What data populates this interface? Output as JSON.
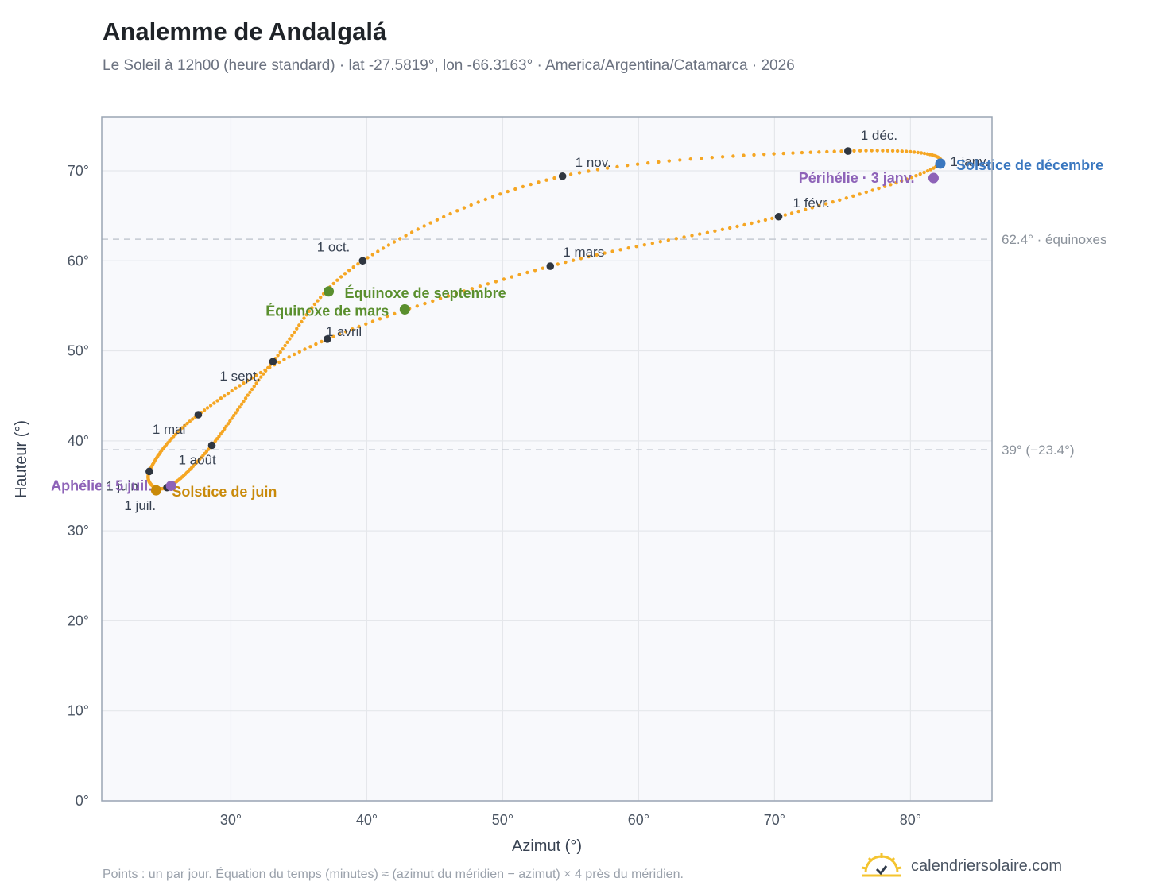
{
  "title": "Analemme de Andalgalá",
  "subtitle": "Le Soleil à 12h00 (heure standard) · lat -27.5819°, lon -66.3163° · America/Argentina/Catamarca · 2026",
  "footnote": "Points : un par jour. Équation du temps (minutes) ≈ (azimut du méridien − azimut) × 4 près du méridien.",
  "brand": {
    "name": "calendriersolaire.com",
    "icon": "sun-logo-icon"
  },
  "colors": {
    "curve": "#f5a623",
    "month_dot": "#2f3640",
    "equinox": "#5a8f2e",
    "june_solstice": "#c98a0a",
    "december_solstice": "#3b78c0",
    "apsis": "#8e63b8",
    "grid": "#e5e7eb",
    "plot_bg": "#f8f9fc",
    "frame": "#9aa5b4"
  },
  "chart_data": {
    "type": "scatter",
    "xlabel": "Azimut (°)",
    "ylabel": "Hauteur (°)",
    "xlim": [
      20.5,
      86
    ],
    "ylim": [
      0,
      76
    ],
    "xticks": [
      "30°",
      "40°",
      "50°",
      "60°",
      "70°",
      "80°"
    ],
    "yticks": [
      "0°",
      "10°",
      "20°",
      "30°",
      "40°",
      "50°",
      "60°",
      "70°"
    ],
    "grid": true,
    "reference_lines": [
      {
        "y": 62.4,
        "label": "62.4° · équinoxes"
      },
      {
        "y": 39.0,
        "label": "39° (−23.4°)"
      }
    ],
    "months": [
      {
        "label": "1 janv.",
        "az": 82.1,
        "alt": 70.7
      },
      {
        "label": "1 févr.",
        "az": 70.3,
        "alt": 64.9
      },
      {
        "label": "1 mars",
        "az": 53.5,
        "alt": 59.4
      },
      {
        "label": "1 avril",
        "az": 37.1,
        "alt": 51.3
      },
      {
        "label": "1 mai",
        "az": 27.6,
        "alt": 42.9
      },
      {
        "label": "1 juin",
        "az": 24.0,
        "alt": 36.6
      },
      {
        "label": "1 juil.",
        "az": 25.3,
        "alt": 34.8
      },
      {
        "label": "1 août",
        "az": 28.6,
        "alt": 39.5
      },
      {
        "label": "1 sept.",
        "az": 33.1,
        "alt": 48.8
      },
      {
        "label": "1 oct.",
        "az": 39.7,
        "alt": 60.0
      },
      {
        "label": "1 nov.",
        "az": 54.4,
        "alt": 69.4
      },
      {
        "label": "1 déc.",
        "az": 75.4,
        "alt": 72.2
      }
    ],
    "events": [
      {
        "label": "Équinoxe de mars",
        "az": 42.8,
        "alt": 54.6,
        "kind": "equinox"
      },
      {
        "label": "Solstice de juin",
        "az": 24.5,
        "alt": 34.5,
        "kind": "june_solstice"
      },
      {
        "label": "Aphélie · 5 juil.",
        "az": 25.6,
        "alt": 35.0,
        "kind": "apsis"
      },
      {
        "label": "Équinoxe de septembre",
        "az": 37.2,
        "alt": 56.6,
        "kind": "equinox"
      },
      {
        "label": "Solstice de décembre",
        "az": 82.2,
        "alt": 70.8,
        "kind": "december_solstice"
      },
      {
        "label": "Périhélie · 3 janv.",
        "az": 81.7,
        "alt": 69.2,
        "kind": "apsis"
      }
    ]
  }
}
